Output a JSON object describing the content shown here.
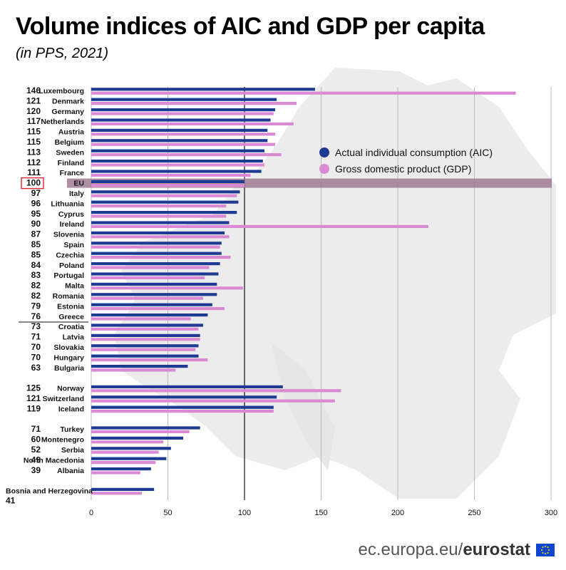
{
  "title": "Volume indices of AIC and GDP per capita",
  "subtitle": "(in PPS, 2021)",
  "footer": {
    "site_prefix": "ec.europa.eu/",
    "site_brand": "eurostat"
  },
  "colors": {
    "aic": "#1f3a93",
    "gdp": "#d98ad3",
    "eu_band": "#a07a92",
    "eu_box": "#e0242b",
    "grid": "#bbbbbb",
    "map": "#ececec"
  },
  "chart_data": {
    "type": "bar",
    "orientation": "horizontal",
    "xlim": [
      0,
      300
    ],
    "xticks": [
      0,
      50,
      100,
      150,
      200,
      250,
      300
    ],
    "legend": {
      "position": "right",
      "entries": [
        "Actual individual consumption (AIC)",
        "Gross domestic product (GDP)"
      ]
    },
    "series": [
      {
        "name": "Actual individual consumption (AIC)",
        "key": "aic"
      },
      {
        "name": "Gross domestic product (GDP)",
        "key": "gdp"
      }
    ],
    "groups": [
      [
        {
          "country": "Luxembourg",
          "label": "146",
          "aic": 146,
          "gdp": 277
        },
        {
          "country": "Denmark",
          "label": "121",
          "aic": 121,
          "gdp": 134
        },
        {
          "country": "Germany",
          "label": "120",
          "aic": 120,
          "gdp": 119
        },
        {
          "country": "Netherlands",
          "label": "117",
          "aic": 117,
          "gdp": 132
        },
        {
          "country": "Austria",
          "label": "115",
          "aic": 115,
          "gdp": 120
        },
        {
          "country": "Belgium",
          "label": "115",
          "aic": 115,
          "gdp": 120
        },
        {
          "country": "Sweden",
          "label": "113",
          "aic": 113,
          "gdp": 124
        },
        {
          "country": "Finland",
          "label": "112",
          "aic": 112,
          "gdp": 113
        },
        {
          "country": "France",
          "label": "111",
          "aic": 111,
          "gdp": 104
        },
        {
          "country": "EU",
          "label": "100",
          "aic": 100,
          "gdp": 100,
          "highlight": true
        },
        {
          "country": "Italy",
          "label": "97",
          "aic": 97,
          "gdp": 95
        },
        {
          "country": "Lithuania",
          "label": "96",
          "aic": 96,
          "gdp": 88
        },
        {
          "country": "Cyprus",
          "label": "95",
          "aic": 95,
          "gdp": 88
        },
        {
          "country": "Ireland",
          "label": "90",
          "aic": 90,
          "gdp": 220
        },
        {
          "country": "Slovenia",
          "label": "87",
          "aic": 87,
          "gdp": 90
        },
        {
          "country": "Spain",
          "label": "85",
          "aic": 85,
          "gdp": 84
        },
        {
          "country": "Czechia",
          "label": "85",
          "aic": 85,
          "gdp": 91
        },
        {
          "country": "Poland",
          "label": "84",
          "aic": 84,
          "gdp": 77
        },
        {
          "country": "Portugal",
          "label": "83",
          "aic": 83,
          "gdp": 74
        },
        {
          "country": "Malta",
          "label": "82",
          "aic": 82,
          "gdp": 99
        },
        {
          "country": "Romania",
          "label": "82",
          "aic": 82,
          "gdp": 73
        },
        {
          "country": "Estonia",
          "label": "79",
          "aic": 79,
          "gdp": 87
        },
        {
          "country": "Greece",
          "label": "76",
          "aic": 76,
          "gdp": 65
        },
        {
          "country": "Croatia",
          "label": "73",
          "aic": 73,
          "gdp": 70
        },
        {
          "country": "Latvia",
          "label": "71",
          "aic": 71,
          "gdp": 71
        },
        {
          "country": "Slovakia",
          "label": "70",
          "aic": 70,
          "gdp": 68
        },
        {
          "country": "Hungary",
          "label": "70",
          "aic": 70,
          "gdp": 76
        },
        {
          "country": "Bulgaria",
          "label": "63",
          "aic": 63,
          "gdp": 55
        }
      ],
      [
        {
          "country": "Norway",
          "label": "125",
          "aic": 125,
          "gdp": 163
        },
        {
          "country": "Switzerland",
          "label": "121",
          "aic": 121,
          "gdp": 159
        },
        {
          "country": "Iceland",
          "label": "119",
          "aic": 119,
          "gdp": 119
        }
      ],
      [
        {
          "country": "Turkey",
          "label": "71",
          "aic": 71,
          "gdp": 64
        },
        {
          "country": "Montenegro",
          "label": "60",
          "aic": 60,
          "gdp": 47
        },
        {
          "country": "Serbia",
          "label": "52",
          "aic": 52,
          "gdp": 44
        },
        {
          "country": "North Macedonia",
          "label": "49",
          "aic": 49,
          "gdp": 42
        },
        {
          "country": "Albania",
          "label": "39",
          "aic": 39,
          "gdp": 32
        }
      ],
      [
        {
          "country": "Bosnia and Herzegovina",
          "label": "41",
          "aic": 41,
          "gdp": 33,
          "label_below": true
        }
      ]
    ]
  }
}
